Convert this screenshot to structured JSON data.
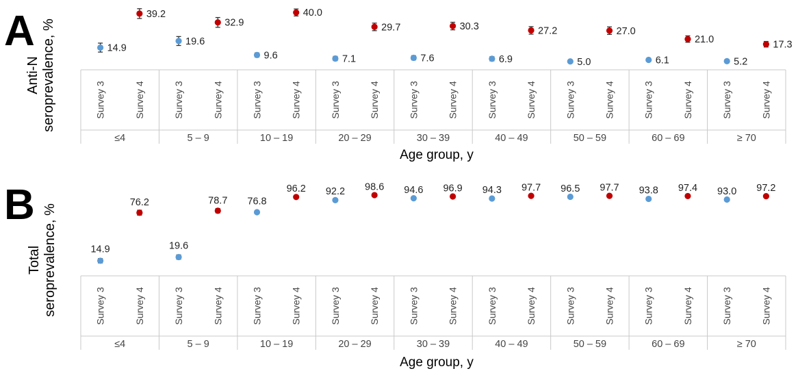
{
  "chart_data": [
    {
      "type": "scatter",
      "panel_label": "A",
      "title": "",
      "ylabel": [
        "Anti-N",
        "seroprevalence, %"
      ],
      "xlabel": "Age group, y",
      "categories": [
        "≤4",
        "5 – 9",
        "10 – 19",
        "20 – 29",
        "30 – 39",
        "40 – 49",
        "50 – 59",
        "60 – 69",
        "≥ 70"
      ],
      "sub_categories": [
        "Survey 3",
        "Survey 4"
      ],
      "ylim": [
        0,
        45
      ],
      "grid": false,
      "legend": "none",
      "error_bars": true,
      "series": [
        {
          "color": "#5b9bd5",
          "values": [
            14.9,
            19.6,
            9.6,
            7.1,
            7.6,
            6.9,
            5.0,
            6.1,
            5.2
          ],
          "labels": [
            "14.9",
            "19.6",
            "9.6",
            "7.1",
            "7.6",
            "6.9",
            "5.0",
            "6.1",
            "5.2"
          ],
          "error": [
            3.2,
            3.2,
            1.5,
            1.5,
            1.5,
            1.5,
            1.0,
            1.0,
            0.9
          ]
        },
        {
          "color": "#c00000",
          "values": [
            39.2,
            32.9,
            40.0,
            29.7,
            30.3,
            27.2,
            27.0,
            21.0,
            17.3
          ],
          "labels": [
            "39.2",
            "32.9",
            "40.0",
            "29.7",
            "30.3",
            "27.2",
            "27.0",
            "21.0",
            "17.3"
          ],
          "error": [
            3.5,
            3.5,
            2.5,
            2.7,
            2.7,
            2.7,
            2.7,
            2.3,
            2.0
          ]
        }
      ]
    },
    {
      "type": "scatter",
      "panel_label": "B",
      "title": "",
      "ylabel": [
        "Total",
        "seroprevalence, %"
      ],
      "xlabel": "Age group, y",
      "categories": [
        "≤4",
        "5 – 9",
        "10 – 19",
        "20 – 29",
        "30 – 39",
        "40 – 49",
        "50 – 59",
        "60 – 69",
        "≥ 70"
      ],
      "sub_categories": [
        "Survey 3",
        "Survey 4"
      ],
      "ylim": [
        0,
        110
      ],
      "grid": false,
      "legend": "none",
      "error_bars": true,
      "series": [
        {
          "color": "#5b9bd5",
          "values": [
            14.9,
            19.6,
            76.8,
            92.2,
            94.6,
            94.3,
            96.5,
            93.8,
            93.0
          ],
          "labels": [
            "14.9",
            "19.6",
            "76.8",
            "92.2",
            "94.6",
            "94.3",
            "96.5",
            "93.8",
            "93.0"
          ],
          "error": [
            2.8,
            2.8,
            2.0,
            1.0,
            0.6,
            0.8,
            0.6,
            0.8,
            0.6
          ]
        },
        {
          "color": "#c00000",
          "values": [
            76.2,
            78.7,
            96.2,
            98.6,
            96.9,
            97.7,
            97.7,
            97.4,
            97.2
          ],
          "labels": [
            "76.2",
            "78.7",
            "96.2",
            "98.6",
            "96.9",
            "97.7",
            "97.7",
            "97.4",
            "97.2"
          ],
          "error": [
            3.2,
            2.8,
            0.5,
            0.4,
            0.5,
            0.5,
            0.5,
            0.5,
            0.5
          ]
        }
      ]
    }
  ]
}
